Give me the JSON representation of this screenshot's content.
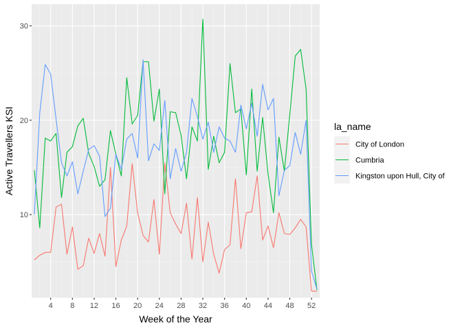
{
  "chart_data": {
    "type": "line",
    "title": "",
    "xlabel": "Week of the Year",
    "ylabel": "Active Travellers KSI",
    "xlim": [
      0.5,
      53.5
    ],
    "ylim": [
      1.2,
      32.3
    ],
    "x_ticks": [
      4,
      8,
      12,
      16,
      20,
      24,
      28,
      32,
      36,
      40,
      44,
      48,
      52
    ],
    "y_ticks": [
      10,
      20,
      30
    ],
    "grid": true,
    "legend": {
      "title": "la_name",
      "position": "right"
    },
    "x": [
      1,
      2,
      3,
      4,
      5,
      6,
      7,
      8,
      9,
      10,
      11,
      12,
      13,
      14,
      15,
      16,
      17,
      18,
      19,
      20,
      21,
      22,
      23,
      24,
      25,
      26,
      27,
      28,
      29,
      30,
      31,
      32,
      33,
      34,
      35,
      36,
      37,
      38,
      39,
      40,
      41,
      42,
      43,
      44,
      45,
      46,
      47,
      48,
      49,
      50,
      51,
      52,
      53
    ],
    "series": [
      {
        "name": "City of London",
        "color": "#F8766D",
        "values": [
          5.2,
          5.7,
          6.0,
          6.0,
          10.8,
          11.1,
          5.8,
          8.7,
          4.2,
          4.6,
          7.5,
          5.9,
          8.0,
          5.6,
          15.0,
          4.5,
          7.3,
          8.8,
          15.4,
          10.2,
          7.8,
          7.1,
          11.6,
          5.8,
          15.5,
          10.2,
          9.0,
          8.0,
          11.2,
          5.3,
          11.8,
          5.0,
          9.2,
          5.8,
          3.8,
          6.3,
          6.8,
          13.8,
          6.4,
          10.2,
          10.3,
          14.1,
          7.3,
          8.8,
          6.5,
          10.2,
          8.0,
          7.9,
          8.6,
          9.5,
          8.7,
          1.9,
          1.9
        ]
      },
      {
        "name": "Cumbria",
        "color": "#00BA38",
        "values": [
          14.7,
          8.6,
          18.1,
          17.8,
          18.6,
          11.8,
          16.6,
          17.2,
          19.4,
          20.2,
          16.5,
          15.1,
          13.0,
          13.7,
          18.9,
          16.4,
          14.1,
          24.5,
          19.6,
          20.5,
          26.2,
          26.2,
          19.9,
          23.3,
          12.2,
          20.9,
          20.8,
          18.4,
          13.8,
          19.3,
          17.8,
          30.7,
          14.8,
          18.3,
          15.5,
          16.6,
          26.0,
          20.8,
          21.2,
          14.2,
          23.3,
          14.6,
          20.3,
          14.3,
          10.2,
          18.2,
          14.6,
          20.6,
          26.8,
          27.5,
          23.3,
          6.8,
          2.0
        ]
      },
      {
        "name": "Kingston upon Hull, City of",
        "color": "#619CFF",
        "values": [
          10.0,
          20.8,
          25.9,
          24.9,
          20.1,
          15.5,
          14.1,
          15.6,
          12.2,
          14.6,
          16.9,
          17.3,
          16.2,
          9.8,
          10.7,
          16.4,
          14.8,
          18.0,
          18.6,
          16.0,
          26.4,
          15.7,
          17.5,
          16.8,
          22.1,
          13.8,
          17.0,
          14.6,
          16.6,
          22.3,
          20.4,
          18.0,
          19.8,
          16.6,
          19.3,
          18.1,
          17.8,
          16.6,
          21.6,
          19.1,
          21.8,
          18.3,
          23.8,
          21.1,
          22.3,
          12.0,
          14.7,
          15.2,
          18.7,
          16.4,
          20.0,
          4.0,
          2.1
        ]
      }
    ]
  }
}
